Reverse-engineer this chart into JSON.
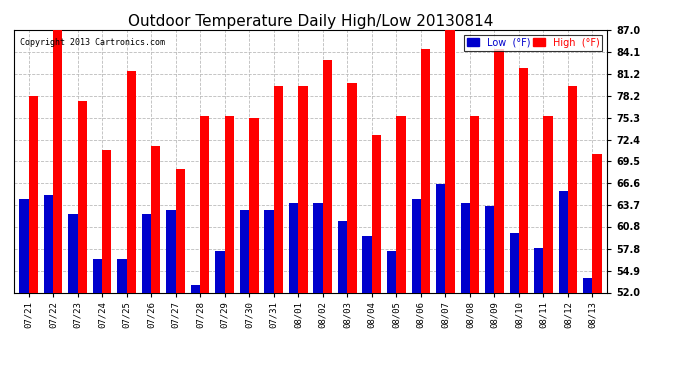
{
  "title": "Outdoor Temperature Daily High/Low 20130814",
  "copyright": "Copyright 2013 Cartronics.com",
  "legend_low": "Low  (°F)",
  "legend_high": "High  (°F)",
  "dates": [
    "07/21",
    "07/22",
    "07/23",
    "07/24",
    "07/25",
    "07/26",
    "07/27",
    "07/28",
    "07/29",
    "07/30",
    "07/31",
    "08/01",
    "08/02",
    "08/03",
    "08/04",
    "08/05",
    "08/06",
    "08/07",
    "08/08",
    "08/09",
    "08/10",
    "08/11",
    "08/12",
    "08/13"
  ],
  "highs": [
    78.2,
    87.0,
    77.5,
    71.0,
    81.5,
    71.5,
    68.5,
    75.5,
    75.5,
    75.3,
    79.5,
    79.5,
    83.0,
    80.0,
    73.0,
    75.5,
    84.5,
    87.0,
    75.5,
    84.5,
    82.0,
    75.5,
    79.5,
    70.5
  ],
  "lows": [
    64.5,
    65.0,
    62.5,
    56.5,
    56.5,
    62.5,
    63.0,
    53.0,
    57.5,
    63.0,
    63.0,
    64.0,
    64.0,
    61.5,
    59.5,
    57.5,
    64.5,
    66.5,
    64.0,
    63.5,
    60.0,
    58.0,
    65.5,
    54.0
  ],
  "ylim_min": 52.0,
  "ylim_max": 87.0,
  "yticks": [
    52.0,
    54.9,
    57.8,
    60.8,
    63.7,
    66.6,
    69.5,
    72.4,
    75.3,
    78.2,
    81.2,
    84.1,
    87.0
  ],
  "high_color": "#ff0000",
  "low_color": "#0000cc",
  "bg_color": "#ffffff",
  "grid_color": "#bbbbbb",
  "title_fontsize": 11,
  "bar_width": 0.38
}
